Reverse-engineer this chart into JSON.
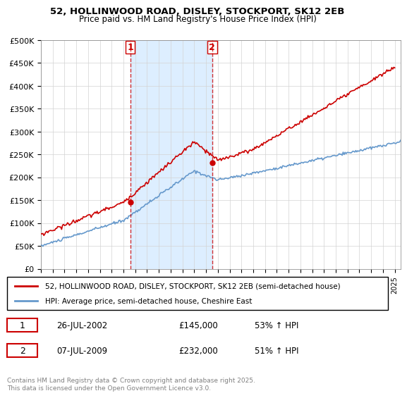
{
  "title1": "52, HOLLINWOOD ROAD, DISLEY, STOCKPORT, SK12 2EB",
  "title2": "Price paid vs. HM Land Registry's House Price Index (HPI)",
  "legend_line1": "52, HOLLINWOOD ROAD, DISLEY, STOCKPORT, SK12 2EB (semi-detached house)",
  "legend_line2": "HPI: Average price, semi-detached house, Cheshire East",
  "footnote": "Contains HM Land Registry data © Crown copyright and database right 2025.\nThis data is licensed under the Open Government Licence v3.0.",
  "event1_label": "1",
  "event1_date": "26-JUL-2002",
  "event1_price": "£145,000",
  "event1_pct": "53% ↑ HPI",
  "event1_x": 2002.57,
  "event1_y": 145000,
  "event2_label": "2",
  "event2_date": "07-JUL-2009",
  "event2_price": "£232,000",
  "event2_pct": "51% ↑ HPI",
  "event2_x": 2009.52,
  "event2_y": 232000,
  "red_color": "#cc0000",
  "blue_color": "#6699cc",
  "vline_color": "#cc0000",
  "bg_highlight_color": "#ddeeff",
  "ylim": [
    0,
    500000
  ],
  "xlim_start": 1995,
  "xlim_end": 2025.5,
  "yticks": [
    0,
    50000,
    100000,
    150000,
    200000,
    250000,
    300000,
    350000,
    400000,
    450000,
    500000
  ],
  "ytick_labels": [
    "£0",
    "£50K",
    "£100K",
    "£150K",
    "£200K",
    "£250K",
    "£300K",
    "£350K",
    "£400K",
    "£450K",
    "£500K"
  ]
}
